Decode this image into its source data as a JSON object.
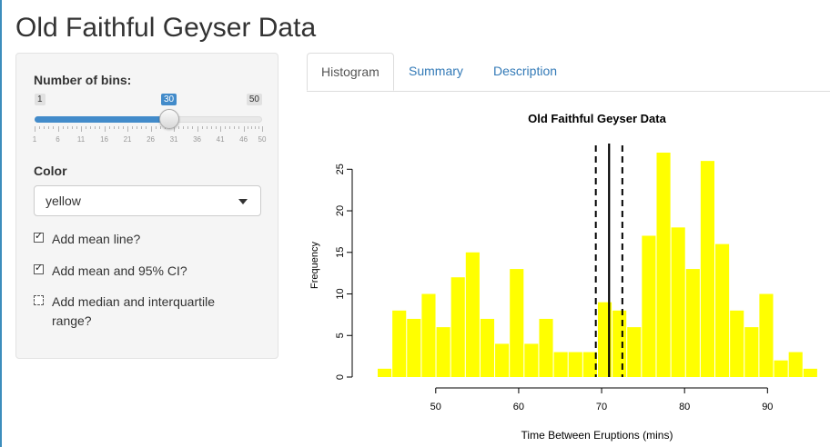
{
  "page": {
    "title": "Old Faithful Geyser Data"
  },
  "sidebar": {
    "bins": {
      "label": "Number of bins:",
      "min": 1,
      "max": 50,
      "value": 30,
      "min_label": "1",
      "max_label": "50",
      "value_label": "30",
      "ticks": [
        "1",
        "6",
        "11",
        "16",
        "21",
        "26",
        "31",
        "36",
        "41",
        "46",
        "50"
      ]
    },
    "color": {
      "label": "Color",
      "value": "yellow"
    },
    "checkboxes": [
      {
        "label": "Add mean line?",
        "checked": true
      },
      {
        "label": "Add mean and 95% CI?",
        "checked": true
      },
      {
        "label": "Add median and interquartile",
        "label_line2": "range?",
        "checked": false
      }
    ]
  },
  "tabs": [
    {
      "label": "Histogram",
      "active": true
    },
    {
      "label": "Summary",
      "active": false
    },
    {
      "label": "Description",
      "active": false
    }
  ],
  "chart_data": {
    "type": "bar",
    "title": "Old Faithful Geyser Data",
    "xlabel": "Time Between Eruptions (mins)",
    "ylabel": "Frequency",
    "bar_color": "#ffff00",
    "bin_start": 43,
    "bin_width": 1.77,
    "values": [
      1,
      8,
      7,
      10,
      6,
      12,
      15,
      7,
      4,
      13,
      4,
      7,
      3,
      3,
      3,
      9,
      8,
      6,
      17,
      27,
      18,
      13,
      26,
      16,
      8,
      6,
      10,
      2,
      3,
      1
    ],
    "xlim": [
      43,
      96
    ],
    "ylim": [
      0,
      27
    ],
    "xticks": [
      50,
      60,
      70,
      80,
      90
    ],
    "yticks": [
      0,
      5,
      10,
      15,
      20,
      25
    ],
    "mean": 70.9,
    "ci": [
      69.3,
      72.5
    ]
  }
}
